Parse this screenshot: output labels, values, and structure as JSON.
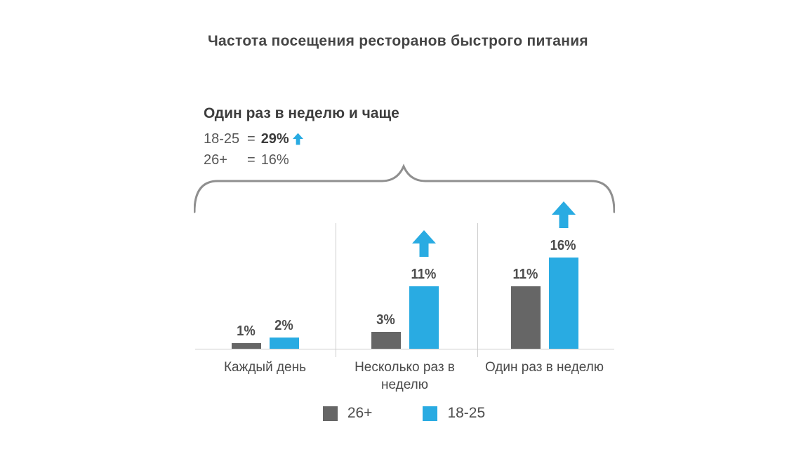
{
  "title": "Частота посещения ресторанов быстрого питания",
  "colors": {
    "blue": "#29abe2",
    "gray": "#666666",
    "line": "#cccccc",
    "brace": "#8f8f8f"
  },
  "annotation": {
    "heading": "Один раз в неделю и чаще",
    "row1_label": "18-25",
    "row1_eq": "=",
    "row1_value": "29%",
    "row2_label": "26+",
    "row2_eq": "=",
    "row2_value": "16%"
  },
  "chart_data": {
    "type": "bar",
    "title": "Частота посещения ресторанов быстрого питания",
    "categories": [
      "Каждый день",
      "Несколько раз в неделю",
      "Один раз в неделю"
    ],
    "series": [
      {
        "name": "26+",
        "color": "#666666",
        "values": [
          1,
          3,
          11
        ],
        "labels": [
          "1%",
          "3%",
          "11%"
        ]
      },
      {
        "name": "18-25",
        "color": "#29abe2",
        "values": [
          2,
          11,
          16
        ],
        "labels": [
          "2%",
          "11%",
          "16%"
        ]
      }
    ],
    "unit": "%",
    "ylim": [
      0,
      16
    ],
    "grid": false,
    "legend_position": "bottom",
    "annotations": [
      "up-arrow above 18-25 bar in category 2",
      "up-arrow above 18-25 bar in category 3"
    ]
  },
  "legend": [
    {
      "label": "26+",
      "color": "#666666"
    },
    {
      "label": "18-25",
      "color": "#29abe2"
    }
  ]
}
